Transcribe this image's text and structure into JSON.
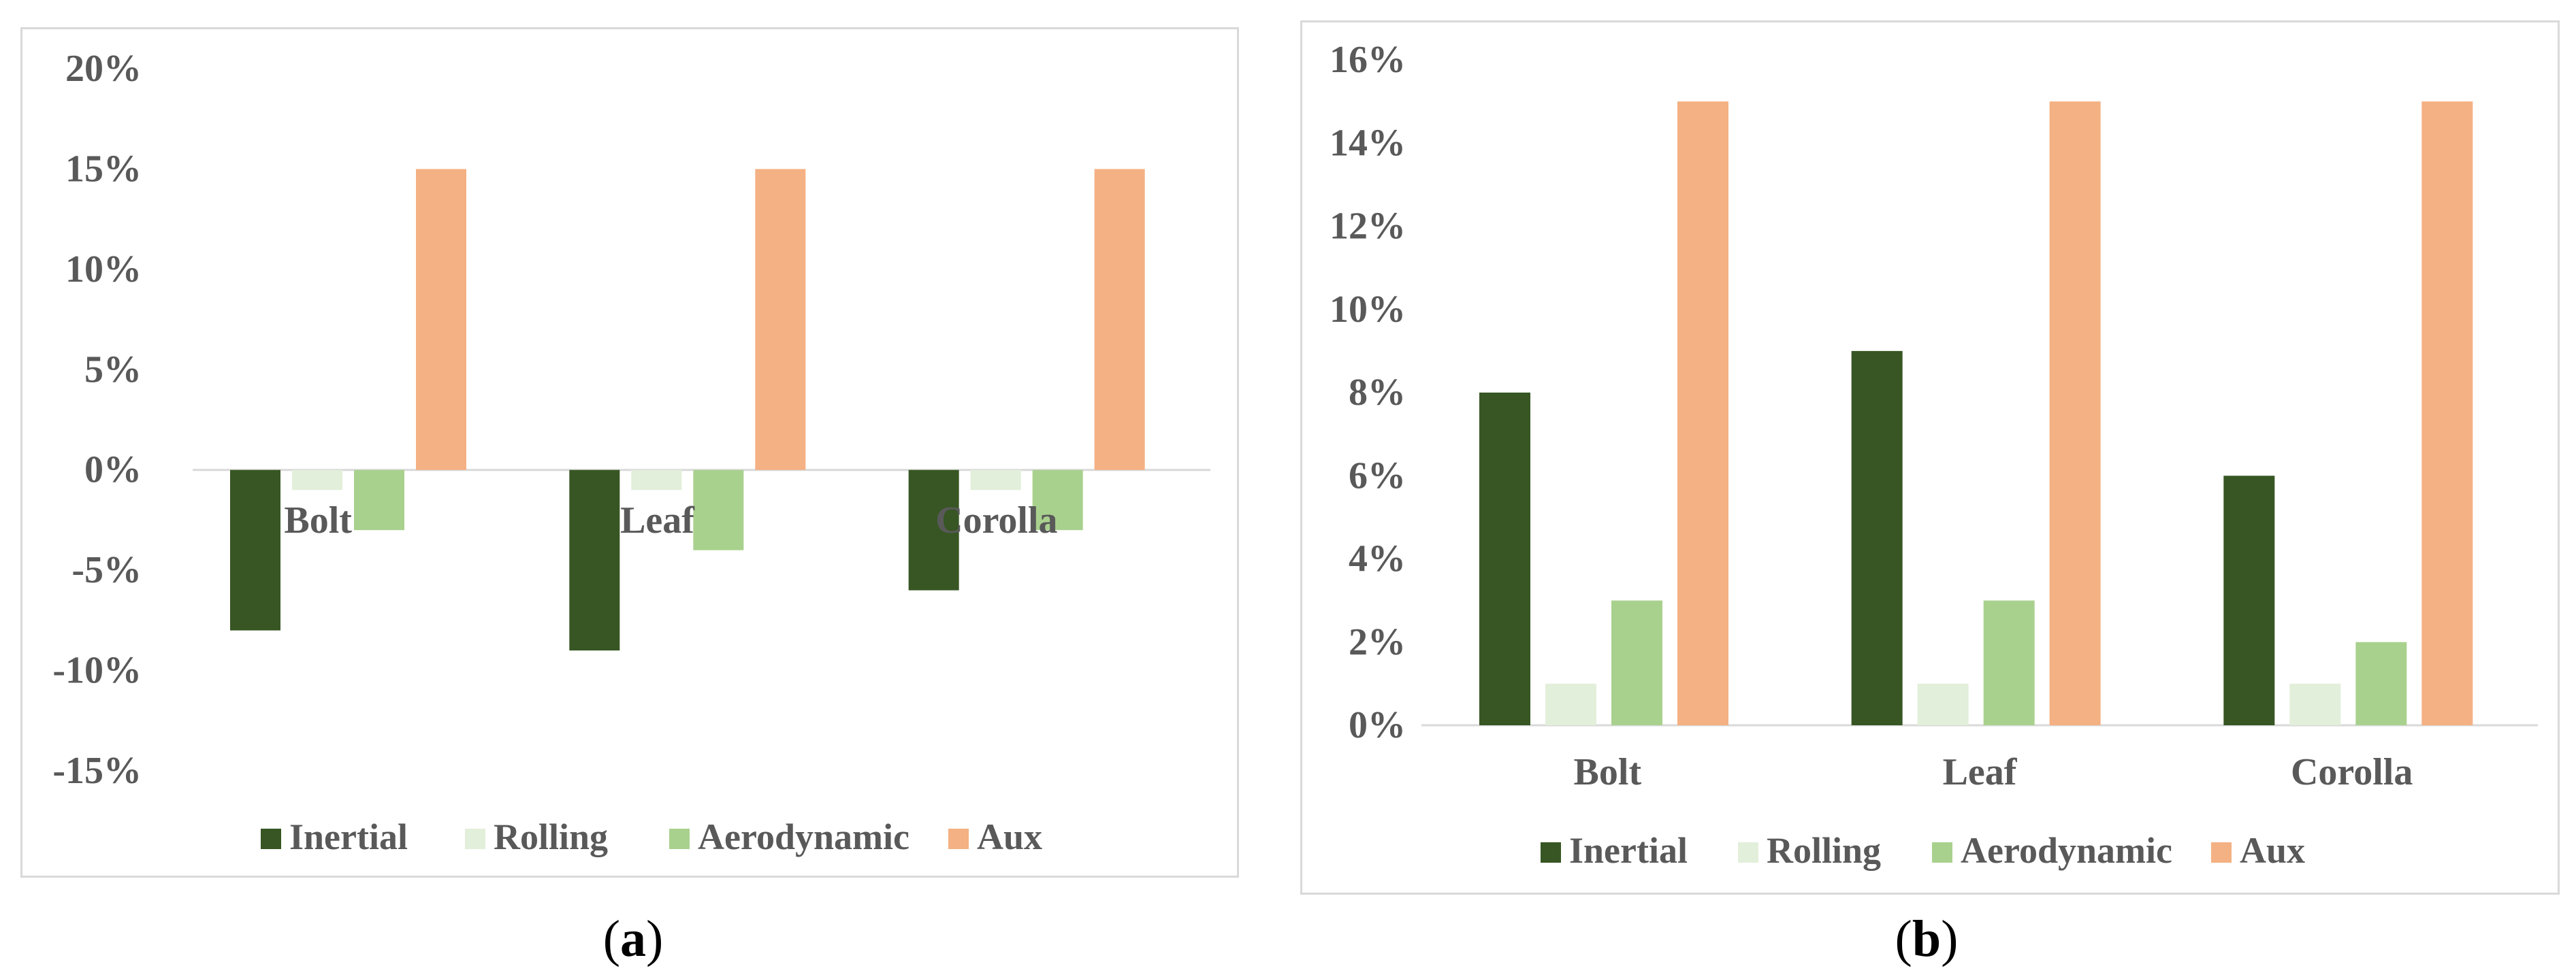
{
  "chart_data": [
    {
      "type": "bar",
      "panel": "a",
      "categories": [
        "Bolt",
        "Leaf",
        "Corolla"
      ],
      "series": [
        {
          "name": "Inertial",
          "values": [
            -8,
            -9,
            -6
          ],
          "color": "#375623"
        },
        {
          "name": "Rolling",
          "values": [
            -1,
            -1,
            -1
          ],
          "color": "#e2efda"
        },
        {
          "name": "Aerodynamic",
          "values": [
            -3,
            -4,
            -3
          ],
          "color": "#a9d18e"
        },
        {
          "name": "Aux",
          "values": [
            15,
            15,
            15
          ],
          "color": "#f4b183"
        }
      ],
      "y_ticks": [
        "20%",
        "15%",
        "10%",
        "5%",
        "0%",
        "-5%",
        "-10%",
        "-15%"
      ],
      "ylim": [
        -15,
        20
      ],
      "title": "",
      "xlabel": "",
      "ylabel": "",
      "legend_position": "bottom",
      "caption": {
        "open": "(",
        "letter": "a",
        "close": ")"
      }
    },
    {
      "type": "bar",
      "panel": "b",
      "categories": [
        "Bolt",
        "Leaf",
        "Corolla"
      ],
      "series": [
        {
          "name": "Inertial",
          "values": [
            8,
            9,
            6
          ],
          "color": "#375623"
        },
        {
          "name": "Rolling",
          "values": [
            1,
            1,
            1
          ],
          "color": "#e2efda"
        },
        {
          "name": "Aerodynamic",
          "values": [
            3,
            3,
            2
          ],
          "color": "#a9d18e"
        },
        {
          "name": "Aux",
          "values": [
            15,
            15,
            15
          ],
          "color": "#f4b183"
        }
      ],
      "y_ticks": [
        "16%",
        "14%",
        "12%",
        "10%",
        "8%",
        "6%",
        "4%",
        "2%",
        "0%"
      ],
      "ylim": [
        0,
        16
      ],
      "title": "",
      "xlabel": "",
      "ylabel": "",
      "legend_position": "bottom",
      "caption": {
        "open": "(",
        "letter": "b",
        "close": ")"
      }
    }
  ]
}
